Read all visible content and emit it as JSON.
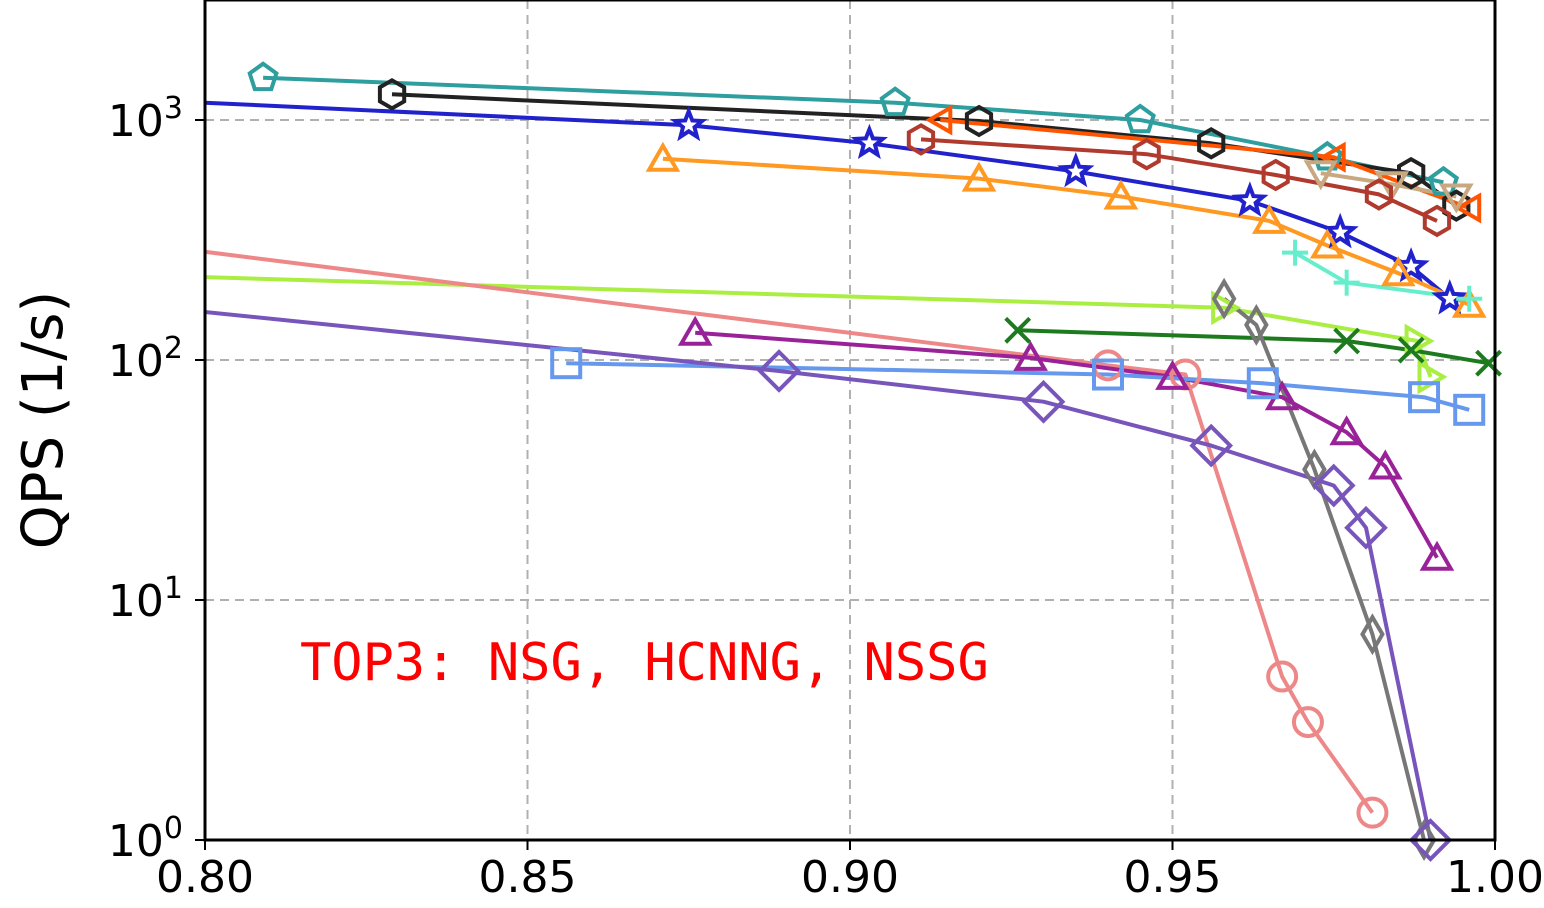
{
  "chart_data": {
    "type": "line",
    "title": "",
    "xlabel": "",
    "ylabel": "QPS (1/s)",
    "xlim": [
      0.8,
      1.0
    ],
    "ylim": [
      1,
      3000
    ],
    "yscale": "log",
    "grid": true,
    "x_ticks": [
      "0.80",
      "0.85",
      "0.90",
      "0.95",
      "1.00"
    ],
    "y_ticks": [
      {
        "base": "10",
        "exp": "0",
        "value": 1
      },
      {
        "base": "10",
        "exp": "1",
        "value": 10
      },
      {
        "base": "10",
        "exp": "2",
        "value": 100
      },
      {
        "base": "10",
        "exp": "3",
        "value": 1000
      }
    ],
    "annotation": {
      "text": "TOP3: NSG, HCNNG, NSSG",
      "color": "#ff0000"
    },
    "series": [
      {
        "color": "#2e9e9e",
        "marker": "pentagon",
        "x": [
          0.809,
          0.907,
          0.945,
          0.974,
          0.992
        ],
        "y": [
          1500,
          1180,
          1000,
          700,
          550
        ]
      },
      {
        "color": "#222222",
        "marker": "hexagon",
        "x": [
          0.829,
          0.92,
          0.956,
          0.987,
          0.994
        ],
        "y": [
          1280,
          990,
          800,
          600,
          440
        ]
      },
      {
        "color": "#ff5500",
        "marker": "tri-left",
        "x": [
          0.914,
          0.975,
          0.996
        ],
        "y": [
          1000,
          700,
          430
        ]
      },
      {
        "color": "#c8a880",
        "marker": "tri-down",
        "x": [
          0.973,
          0.984,
          0.994
        ],
        "y": [
          600,
          540,
          480
        ]
      },
      {
        "color": "#b03a2e",
        "marker": "hexagon",
        "x": [
          0.911,
          0.946,
          0.966,
          0.982,
          0.991
        ],
        "y": [
          830,
          720,
          590,
          490,
          380
        ]
      },
      {
        "color": "#2222cc",
        "marker": "star",
        "x": [
          0.78,
          0.875,
          0.903,
          0.935,
          0.962,
          0.976,
          0.987,
          0.993
        ],
        "y": [
          1250,
          950,
          800,
          610,
          460,
          340,
          245,
          180
        ]
      },
      {
        "color": "#ff9922",
        "marker": "triangle",
        "x": [
          0.871,
          0.92,
          0.942,
          0.965,
          0.974,
          0.985,
          0.996
        ],
        "y": [
          690,
          570,
          480,
          380,
          300,
          230,
          170
        ]
      },
      {
        "color": "#66eecc",
        "marker": "plus",
        "x": [
          0.969,
          0.977,
          0.996
        ],
        "y": [
          280,
          210,
          180
        ]
      },
      {
        "color": "#aaee44",
        "marker": "tri-right",
        "x": [
          0.78,
          0.958,
          0.988,
          0.99
        ],
        "y": [
          230,
          165,
          120,
          85
        ]
      },
      {
        "color": "#1e7a1e",
        "marker": "x",
        "x": [
          0.926,
          0.977,
          0.987,
          0.999
        ],
        "y": [
          133,
          120,
          110,
          97
        ]
      },
      {
        "color": "#777777",
        "marker": "thin-diamond",
        "x": [
          0.958,
          0.963,
          0.972,
          0.981,
          0.989
        ],
        "y": [
          180,
          140,
          35,
          7.2,
          1.0
        ]
      },
      {
        "color": "#ee8888",
        "marker": "circle",
        "x": [
          0.78,
          0.94,
          0.952,
          0.967,
          0.971,
          0.981
        ],
        "y": [
          330,
          95,
          87,
          4.8,
          3.1,
          1.3
        ]
      },
      {
        "color": "#992299",
        "marker": "triangle",
        "x": [
          0.876,
          0.928,
          0.95,
          0.967,
          0.977,
          0.983,
          0.991
        ],
        "y": [
          130,
          102,
          85,
          70,
          50,
          36,
          15
        ]
      },
      {
        "color": "#6699ee",
        "marker": "square",
        "x": [
          0.856,
          0.94,
          0.964,
          0.989,
          0.996
        ],
        "y": [
          97,
          87,
          80,
          70,
          62
        ]
      },
      {
        "color": "#7755bb",
        "marker": "diamond",
        "x": [
          0.78,
          0.889,
          0.93,
          0.956,
          0.975,
          0.98,
          0.99
        ],
        "y": [
          180,
          90,
          67,
          44,
          30,
          20,
          1.0
        ]
      }
    ]
  }
}
